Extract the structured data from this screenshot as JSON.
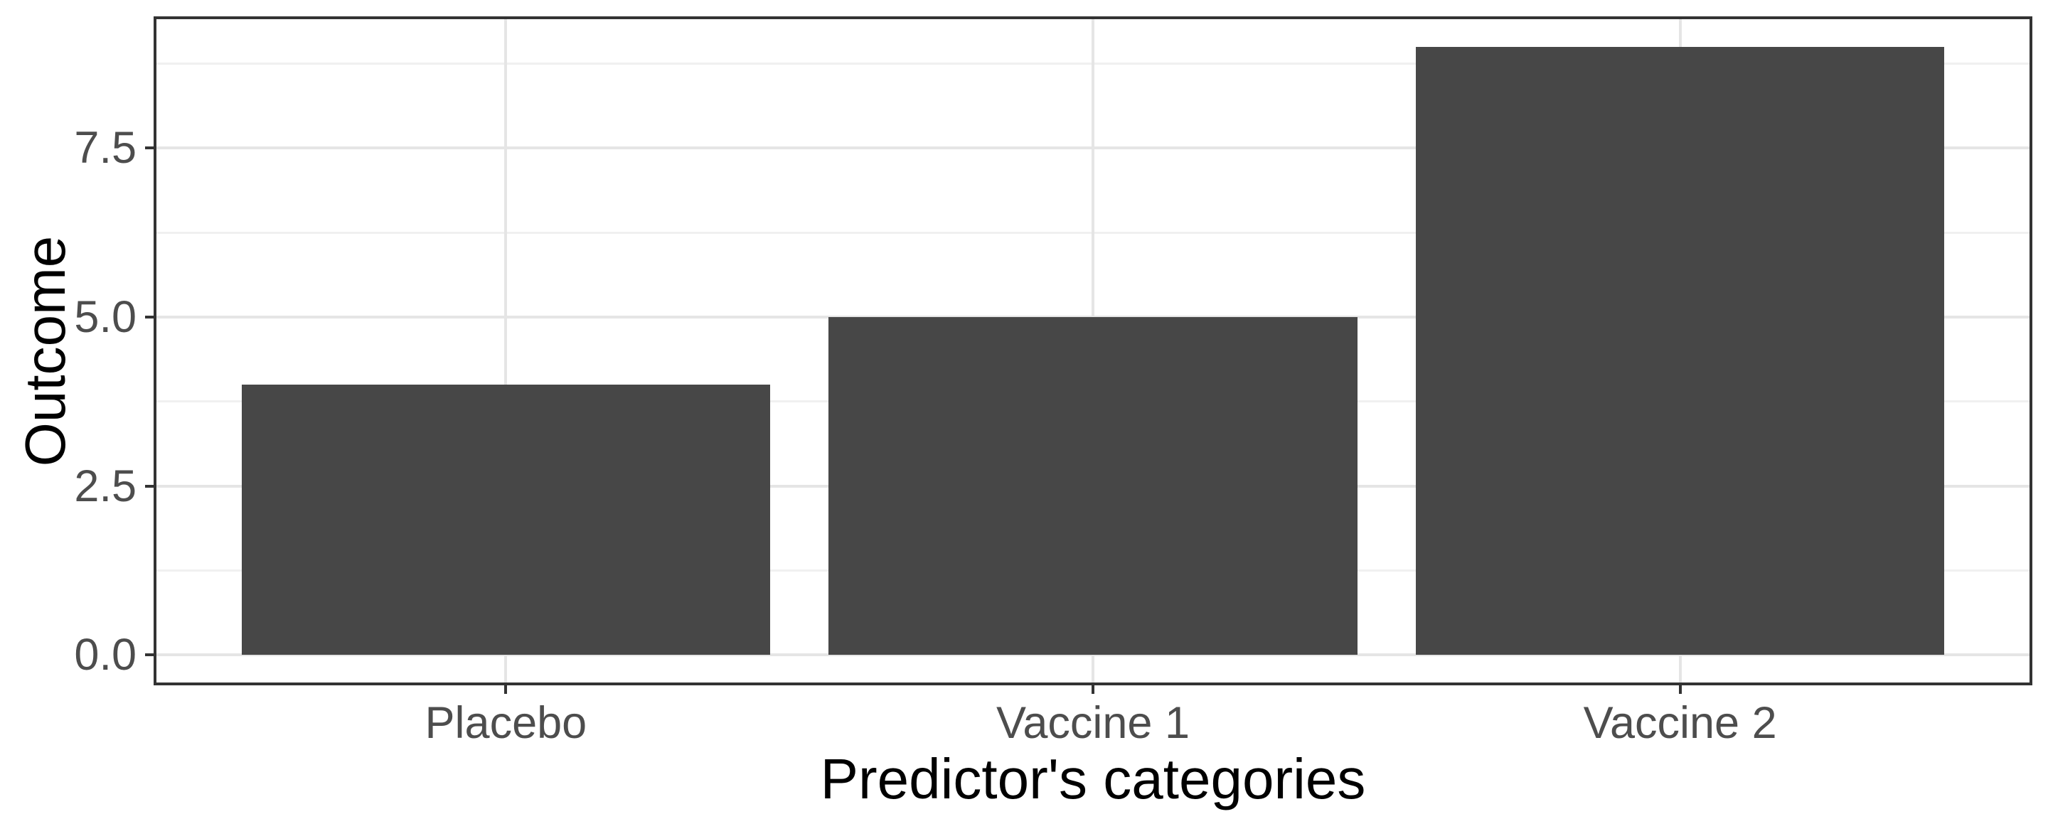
{
  "figure": {
    "background": "#FFFFFF"
  },
  "chart_data": {
    "type": "bar",
    "title": "",
    "xlabel": "Predictor's categories",
    "ylabel": "Outcome",
    "categories": [
      "Placebo",
      "Vaccine 1",
      "Vaccine 2"
    ],
    "values": [
      4,
      5,
      9
    ],
    "ylim": [
      0,
      9
    ],
    "y_major_breaks": [
      0,
      2.5,
      5,
      7.5
    ],
    "y_tick_labels": [
      "0.0",
      "2.5",
      "5.0",
      "7.5"
    ],
    "y_minor_breaks": [
      1.25,
      3.75,
      6.25,
      8.75
    ],
    "x_gridlines_at_category_centers": true,
    "bar_width": 0.9,
    "x_expand": 0.6,
    "y_expand_mult": 0.05,
    "grid": "horizontal major+minor, vertical major",
    "legend": "none",
    "colors": {
      "bar_fill": "#474747",
      "panel_border": "#333333",
      "grid_major": "#E5E5E5",
      "grid_minor": "#F0F0F0",
      "axis_text": "#4D4D4D",
      "axis_title": "#000000",
      "tick_mark": "#333333",
      "background": "#FFFFFF"
    }
  }
}
